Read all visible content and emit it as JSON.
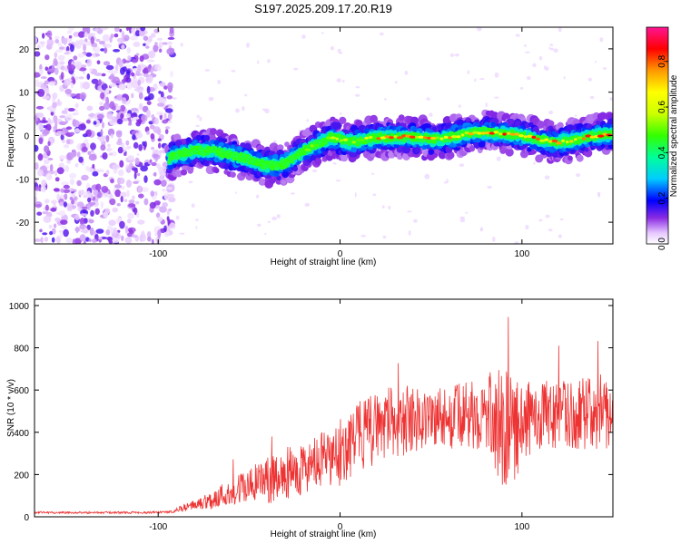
{
  "figure": {
    "title": "S197.2025.209.17.20.R19"
  },
  "chart_data": [
    {
      "type": "heatmap",
      "xlabel": "Height of straight line (km)",
      "ylabel": "Frequency (Hz)",
      "xlim": [
        -168,
        150
      ],
      "ylim": [
        -25,
        25
      ],
      "xticks": [
        "-100",
        "0",
        "100"
      ],
      "xtick_values": [
        -100,
        0,
        100
      ],
      "yticks": [
        "-20",
        "-10",
        "0",
        "10",
        "20"
      ],
      "ytick_values": [
        -20,
        -10,
        0,
        10,
        20
      ],
      "colorbar": {
        "label": "Normalized spectral amplitude",
        "range": [
          0,
          0.95
        ],
        "ticks": [
          "0.0",
          "0.2",
          "0.4",
          "0.6",
          "0.8"
        ],
        "tick_values": [
          0.0,
          0.2,
          0.4,
          0.6,
          0.8
        ],
        "colormap": "rainbow"
      },
      "noise_region_x": [
        -168,
        -92
      ],
      "ridge": {
        "x": [
          -94,
          -90,
          -80,
          -70,
          -60,
          -50,
          -45,
          -40,
          -35,
          -30,
          -25,
          -20,
          -15,
          -10,
          -5,
          0,
          5,
          10,
          20,
          30,
          40,
          50,
          60,
          70,
          80,
          90,
          100,
          110,
          120,
          130,
          140,
          150
        ],
        "y": [
          -5.5,
          -4.5,
          -3.5,
          -3.5,
          -4.5,
          -5.5,
          -6.5,
          -6.8,
          -7,
          -6.5,
          -5,
          -3.5,
          -2.5,
          -1.5,
          -0.5,
          -0.8,
          -1.5,
          -1.2,
          -0.5,
          -0.3,
          -0.4,
          -0.8,
          -0.5,
          0.5,
          0.8,
          0.5,
          0,
          -1,
          -1.5,
          -1,
          0,
          0.3
        ],
        "peak_amplitude": 0.9
      }
    },
    {
      "type": "line",
      "xlabel": "Height of straight line (km)",
      "ylabel": "SNR (10 * v/v)",
      "xlim": [
        -168,
        150
      ],
      "ylim": [
        0,
        1030
      ],
      "xticks": [
        "-100",
        "0",
        "100"
      ],
      "xtick_values": [
        -100,
        0,
        100
      ],
      "yticks": [
        "0",
        "200",
        "400",
        "600",
        "800",
        "1000"
      ],
      "ytick_values": [
        0,
        200,
        400,
        600,
        800,
        1000
      ],
      "color": "#ee3333",
      "series": [
        {
          "x": [
            -168,
            -150,
            -130,
            -110,
            -95,
            -90,
            -85,
            -80,
            -75,
            -70,
            -65,
            -60,
            -55,
            -50,
            -45,
            -40,
            -35,
            -30,
            -25,
            -20,
            -15,
            -10,
            -5,
            0,
            5,
            10,
            15,
            20,
            25,
            30,
            40,
            50,
            60,
            70,
            80,
            85,
            90,
            95,
            100,
            105,
            110,
            120,
            130,
            140,
            150
          ],
          "y": [
            20,
            20,
            20,
            20,
            22,
            30,
            45,
            55,
            70,
            80,
            100,
            120,
            130,
            150,
            160,
            170,
            180,
            200,
            220,
            230,
            240,
            260,
            270,
            300,
            350,
            380,
            400,
            420,
            440,
            450,
            460,
            470,
            470,
            480,
            480,
            470,
            420,
            380,
            450,
            470,
            480,
            480,
            490,
            490,
            480
          ],
          "noise": [
            5,
            5,
            5,
            5,
            5,
            10,
            20,
            25,
            35,
            45,
            60,
            70,
            80,
            90,
            100,
            110,
            110,
            120,
            120,
            130,
            130,
            140,
            140,
            160,
            170,
            170,
            170,
            170,
            170,
            170,
            160,
            150,
            150,
            160,
            160,
            260,
            300,
            260,
            200,
            170,
            170,
            160,
            170,
            170,
            170
          ]
        }
      ]
    }
  ]
}
